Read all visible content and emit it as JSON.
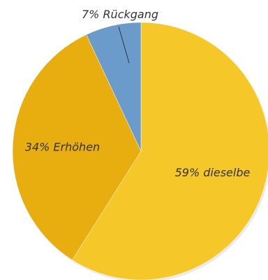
{
  "chart_data": {
    "type": "pie",
    "slices": [
      {
        "label": "59% dieselbe",
        "value": 59,
        "color": "#F5C729"
      },
      {
        "label": "34% Erhöhen",
        "value": 34,
        "color": "#E8AE0F"
      },
      {
        "label": "7% Rückgang",
        "value": 7,
        "color": "#6A9BCB"
      }
    ],
    "start": "12 o'clock",
    "direction": "clockwise",
    "legend": "none"
  }
}
